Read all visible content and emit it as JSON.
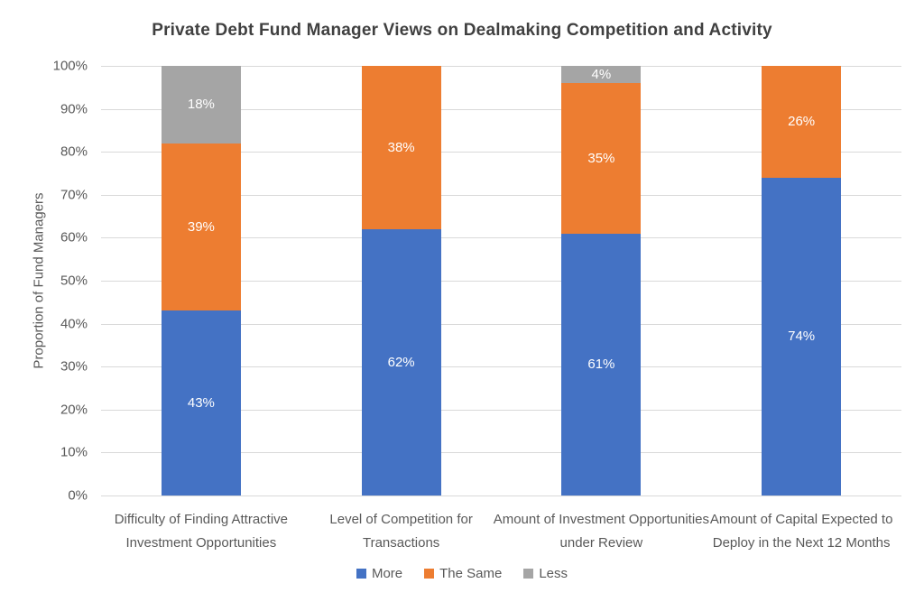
{
  "chart_data": {
    "type": "bar",
    "subtype": "stacked-100",
    "title": "Private Debt Fund Manager Views on Dealmaking Competition and Activity",
    "xlabel": "",
    "ylabel": "Proportion of Fund Managers",
    "ylim": [
      0,
      100
    ],
    "grid": true,
    "legend_position": "bottom",
    "y_ticks": [
      "0%",
      "10%",
      "20%",
      "30%",
      "40%",
      "50%",
      "60%",
      "70%",
      "80%",
      "90%",
      "100%"
    ],
    "categories": [
      "Difficulty of Finding Attractive Investment Opportunities",
      "Level of Competition for Transactions",
      "Amount of Investment Opportunities under Review",
      "Amount of Capital Expected to Deploy in the Next 12 Months"
    ],
    "series": [
      {
        "name": "More",
        "color": "#4472C4",
        "values": [
          43,
          62,
          61,
          74
        ]
      },
      {
        "name": "The Same",
        "color": "#ED7D31",
        "values": [
          39,
          38,
          35,
          26
        ]
      },
      {
        "name": "Less",
        "color": "#A5A5A5",
        "values": [
          18,
          0,
          4,
          0
        ]
      }
    ],
    "data_label_suffix": "%",
    "data_label_color": "#FFFFFF",
    "colors": {
      "gridline": "#D9D9D9",
      "axis_text": "#595959",
      "title_text": "#404040",
      "background": "#FFFFFF"
    }
  }
}
